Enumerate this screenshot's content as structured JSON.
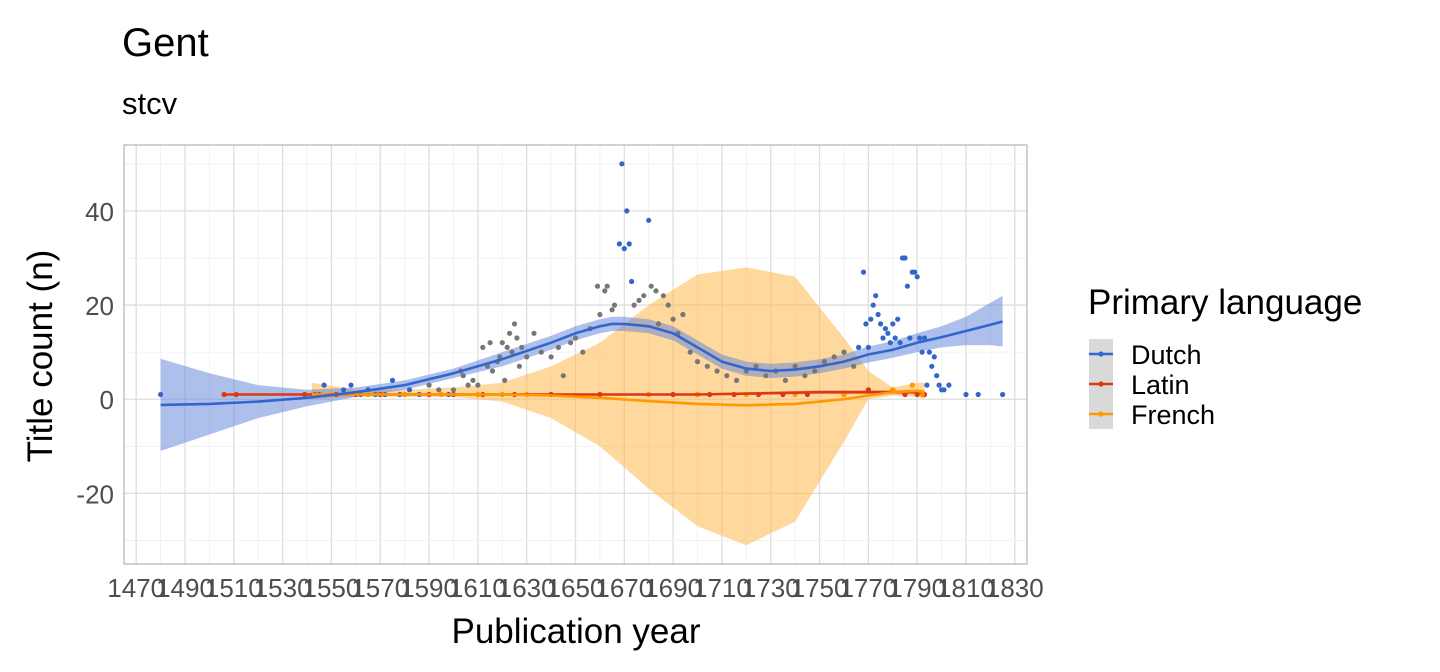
{
  "chart_data": {
    "type": "scatter",
    "title": "Gent",
    "subtitle": "stcv",
    "xlabel": "Publication year",
    "ylabel": "Title count (n)",
    "xlim": [
      1465,
      1835
    ],
    "ylim": [
      -35,
      54
    ],
    "x_ticks": [
      1470,
      1490,
      1510,
      1530,
      1550,
      1570,
      1590,
      1610,
      1630,
      1650,
      1670,
      1690,
      1710,
      1730,
      1750,
      1770,
      1790,
      1810,
      1830
    ],
    "y_ticks": [
      -20,
      0,
      20,
      40
    ],
    "grid": true,
    "legend": {
      "title": "Primary language",
      "position": "right",
      "entries": [
        "Dutch",
        "Latin",
        "French"
      ]
    },
    "colors": {
      "Dutch": "#3366cc",
      "Latin": "#dc3912",
      "French": "#ff9900",
      "overlap": "#777777"
    },
    "series": [
      {
        "name": "Dutch",
        "points": [
          [
            1480,
            1
          ],
          [
            1543,
            1
          ],
          [
            1547,
            3
          ],
          [
            1555,
            2
          ],
          [
            1558,
            3
          ],
          [
            1562,
            1
          ],
          [
            1565,
            2
          ],
          [
            1568,
            1
          ],
          [
            1572,
            1
          ],
          [
            1575,
            4
          ],
          [
            1578,
            1
          ],
          [
            1582,
            2
          ],
          [
            1586,
            1
          ],
          [
            1590,
            3
          ],
          [
            1594,
            2
          ],
          [
            1598,
            1
          ],
          [
            1600,
            2
          ],
          [
            1603,
            6
          ],
          [
            1604,
            5
          ],
          [
            1606,
            3
          ],
          [
            1608,
            4
          ],
          [
            1610,
            3
          ],
          [
            1612,
            11
          ],
          [
            1614,
            7
          ],
          [
            1615,
            12
          ],
          [
            1616,
            6
          ],
          [
            1618,
            8
          ],
          [
            1619,
            9
          ],
          [
            1620,
            12
          ],
          [
            1621,
            4
          ],
          [
            1622,
            11
          ],
          [
            1623,
            14
          ],
          [
            1624,
            10
          ],
          [
            1625,
            16
          ],
          [
            1626,
            13
          ],
          [
            1627,
            7
          ],
          [
            1628,
            11
          ],
          [
            1630,
            9
          ],
          [
            1633,
            14
          ],
          [
            1636,
            10
          ],
          [
            1640,
            9
          ],
          [
            1643,
            11
          ],
          [
            1645,
            5
          ],
          [
            1648,
            12
          ],
          [
            1650,
            13
          ],
          [
            1653,
            10
          ],
          [
            1656,
            15
          ],
          [
            1659,
            24
          ],
          [
            1660,
            18
          ],
          [
            1662,
            23
          ],
          [
            1663,
            24
          ],
          [
            1665,
            19
          ],
          [
            1666,
            20
          ],
          [
            1668,
            33
          ],
          [
            1669,
            50
          ],
          [
            1670,
            32
          ],
          [
            1671,
            40
          ],
          [
            1672,
            33
          ],
          [
            1673,
            25
          ],
          [
            1674,
            20
          ],
          [
            1676,
            21
          ],
          [
            1678,
            22
          ],
          [
            1680,
            38
          ],
          [
            1681,
            24
          ],
          [
            1683,
            23
          ],
          [
            1684,
            16
          ],
          [
            1686,
            22
          ],
          [
            1688,
            20
          ],
          [
            1690,
            17
          ],
          [
            1692,
            14
          ],
          [
            1694,
            18
          ],
          [
            1697,
            10
          ],
          [
            1700,
            8
          ],
          [
            1704,
            7
          ],
          [
            1708,
            6
          ],
          [
            1712,
            5
          ],
          [
            1716,
            4
          ],
          [
            1720,
            6
          ],
          [
            1724,
            7
          ],
          [
            1728,
            5
          ],
          [
            1732,
            6
          ],
          [
            1736,
            4
          ],
          [
            1740,
            7
          ],
          [
            1744,
            5
          ],
          [
            1748,
            6
          ],
          [
            1752,
            8
          ],
          [
            1756,
            9
          ],
          [
            1760,
            10
          ],
          [
            1764,
            7
          ],
          [
            1766,
            11
          ],
          [
            1768,
            27
          ],
          [
            1769,
            16
          ],
          [
            1770,
            11
          ],
          [
            1771,
            17
          ],
          [
            1772,
            20
          ],
          [
            1773,
            22
          ],
          [
            1774,
            18
          ],
          [
            1775,
            16
          ],
          [
            1776,
            13
          ],
          [
            1777,
            15
          ],
          [
            1778,
            14
          ],
          [
            1779,
            12
          ],
          [
            1780,
            16
          ],
          [
            1781,
            13
          ],
          [
            1782,
            17
          ],
          [
            1783,
            12
          ],
          [
            1784,
            30
          ],
          [
            1785,
            30
          ],
          [
            1786,
            24
          ],
          [
            1787,
            13
          ],
          [
            1788,
            27
          ],
          [
            1789,
            27
          ],
          [
            1790,
            26
          ],
          [
            1791,
            13
          ],
          [
            1792,
            10
          ],
          [
            1793,
            13
          ],
          [
            1794,
            3
          ],
          [
            1795,
            10
          ],
          [
            1796,
            7
          ],
          [
            1797,
            9
          ],
          [
            1798,
            5
          ],
          [
            1799,
            3
          ],
          [
            1800,
            2
          ],
          [
            1801,
            2
          ],
          [
            1803,
            3
          ],
          [
            1810,
            1
          ],
          [
            1815,
            1
          ],
          [
            1825,
            1
          ]
        ]
      },
      {
        "name": "Latin",
        "points": [
          [
            1506,
            1
          ],
          [
            1511,
            1
          ],
          [
            1539,
            1
          ],
          [
            1545,
            1
          ],
          [
            1552,
            1
          ],
          [
            1560,
            1
          ],
          [
            1570,
            1
          ],
          [
            1580,
            1
          ],
          [
            1590,
            1
          ],
          [
            1600,
            1
          ],
          [
            1612,
            1
          ],
          [
            1625,
            1
          ],
          [
            1640,
            1
          ],
          [
            1660,
            1
          ],
          [
            1680,
            1
          ],
          [
            1690,
            1
          ],
          [
            1700,
            1
          ],
          [
            1705,
            1
          ],
          [
            1715,
            1
          ],
          [
            1725,
            1
          ],
          [
            1735,
            1
          ],
          [
            1745,
            1
          ],
          [
            1760,
            1
          ],
          [
            1770,
            2
          ],
          [
            1780,
            2
          ],
          [
            1785,
            1
          ],
          [
            1790,
            1
          ],
          [
            1793,
            1
          ]
        ]
      },
      {
        "name": "French",
        "points": [
          [
            1542,
            1
          ],
          [
            1550,
            1
          ],
          [
            1565,
            1
          ],
          [
            1580,
            1
          ],
          [
            1595,
            1
          ],
          [
            1610,
            1
          ],
          [
            1620,
            1
          ],
          [
            1630,
            1
          ],
          [
            1680,
            1
          ],
          [
            1700,
            1
          ],
          [
            1720,
            1
          ],
          [
            1740,
            1
          ],
          [
            1760,
            1
          ],
          [
            1780,
            2
          ],
          [
            1788,
            3
          ],
          [
            1792,
            1
          ]
        ]
      }
    ],
    "smooth": [
      {
        "name": "Dutch",
        "x": [
          1480,
          1500,
          1520,
          1540,
          1560,
          1580,
          1600,
          1620,
          1640,
          1650,
          1660,
          1665,
          1670,
          1680,
          1690,
          1700,
          1710,
          1720,
          1730,
          1740,
          1750,
          1760,
          1770,
          1780,
          1790,
          1800,
          1810,
          1820,
          1825
        ],
        "y": [
          -1.2,
          -1,
          -0.5,
          0.3,
          1.5,
          3,
          5.5,
          8.5,
          12,
          14,
          15.5,
          16,
          16,
          15.5,
          14,
          11,
          8,
          6.5,
          6,
          6.3,
          7,
          8,
          9.5,
          10.5,
          12,
          13.2,
          14.5,
          15.8,
          16.5
        ],
        "lower": [
          -11,
          -7.5,
          -4,
          -1.5,
          0.5,
          2,
          4.5,
          7,
          10.5,
          12.5,
          14,
          14.5,
          14.5,
          14,
          12.5,
          9.5,
          6.5,
          5,
          4.5,
          4.8,
          5.5,
          6.5,
          7.8,
          8.8,
          10,
          11,
          11.5,
          11.5,
          11.2
        ],
        "upper": [
          8.6,
          5.5,
          3,
          2,
          2.5,
          4,
          6.5,
          10,
          13.5,
          15.5,
          17,
          17.5,
          17.5,
          17,
          15.5,
          12.5,
          9.5,
          8,
          7.5,
          7.8,
          8.5,
          9.5,
          11.2,
          12.3,
          14,
          15.5,
          17.5,
          20.5,
          22
        ]
      },
      {
        "name": "Latin",
        "x": [
          1506,
          1540,
          1600,
          1650,
          1700,
          1750,
          1793
        ],
        "y": [
          1,
          1,
          1,
          1,
          1,
          1.5,
          1.5
        ],
        "lower": [
          0.8,
          0.8,
          0.8,
          0.8,
          0.8,
          1.1,
          1
        ],
        "upper": [
          1.2,
          1.2,
          1.2,
          1.2,
          1.2,
          1.9,
          2
        ]
      },
      {
        "name": "French",
        "x": [
          1542,
          1560,
          1580,
          1600,
          1620,
          1640,
          1660,
          1680,
          1700,
          1720,
          1740,
          1760,
          1770,
          1780,
          1790,
          1793
        ],
        "y": [
          1,
          1,
          1,
          1,
          1,
          0.8,
          0.3,
          -0.4,
          -1,
          -1.3,
          -1,
          0,
          0.8,
          1.5,
          1.8,
          1.5
        ],
        "lower": [
          0,
          0.5,
          0.5,
          0.5,
          -0.5,
          -4,
          -10,
          -19,
          -27,
          -31,
          -26,
          -9,
          0,
          0.8,
          0.5,
          0
        ],
        "upper": [
          3.5,
          2,
          2,
          2.5,
          3.5,
          7,
          12,
          20,
          26.5,
          28,
          26,
          13,
          6,
          2.5,
          3.5,
          3.5
        ]
      }
    ]
  }
}
